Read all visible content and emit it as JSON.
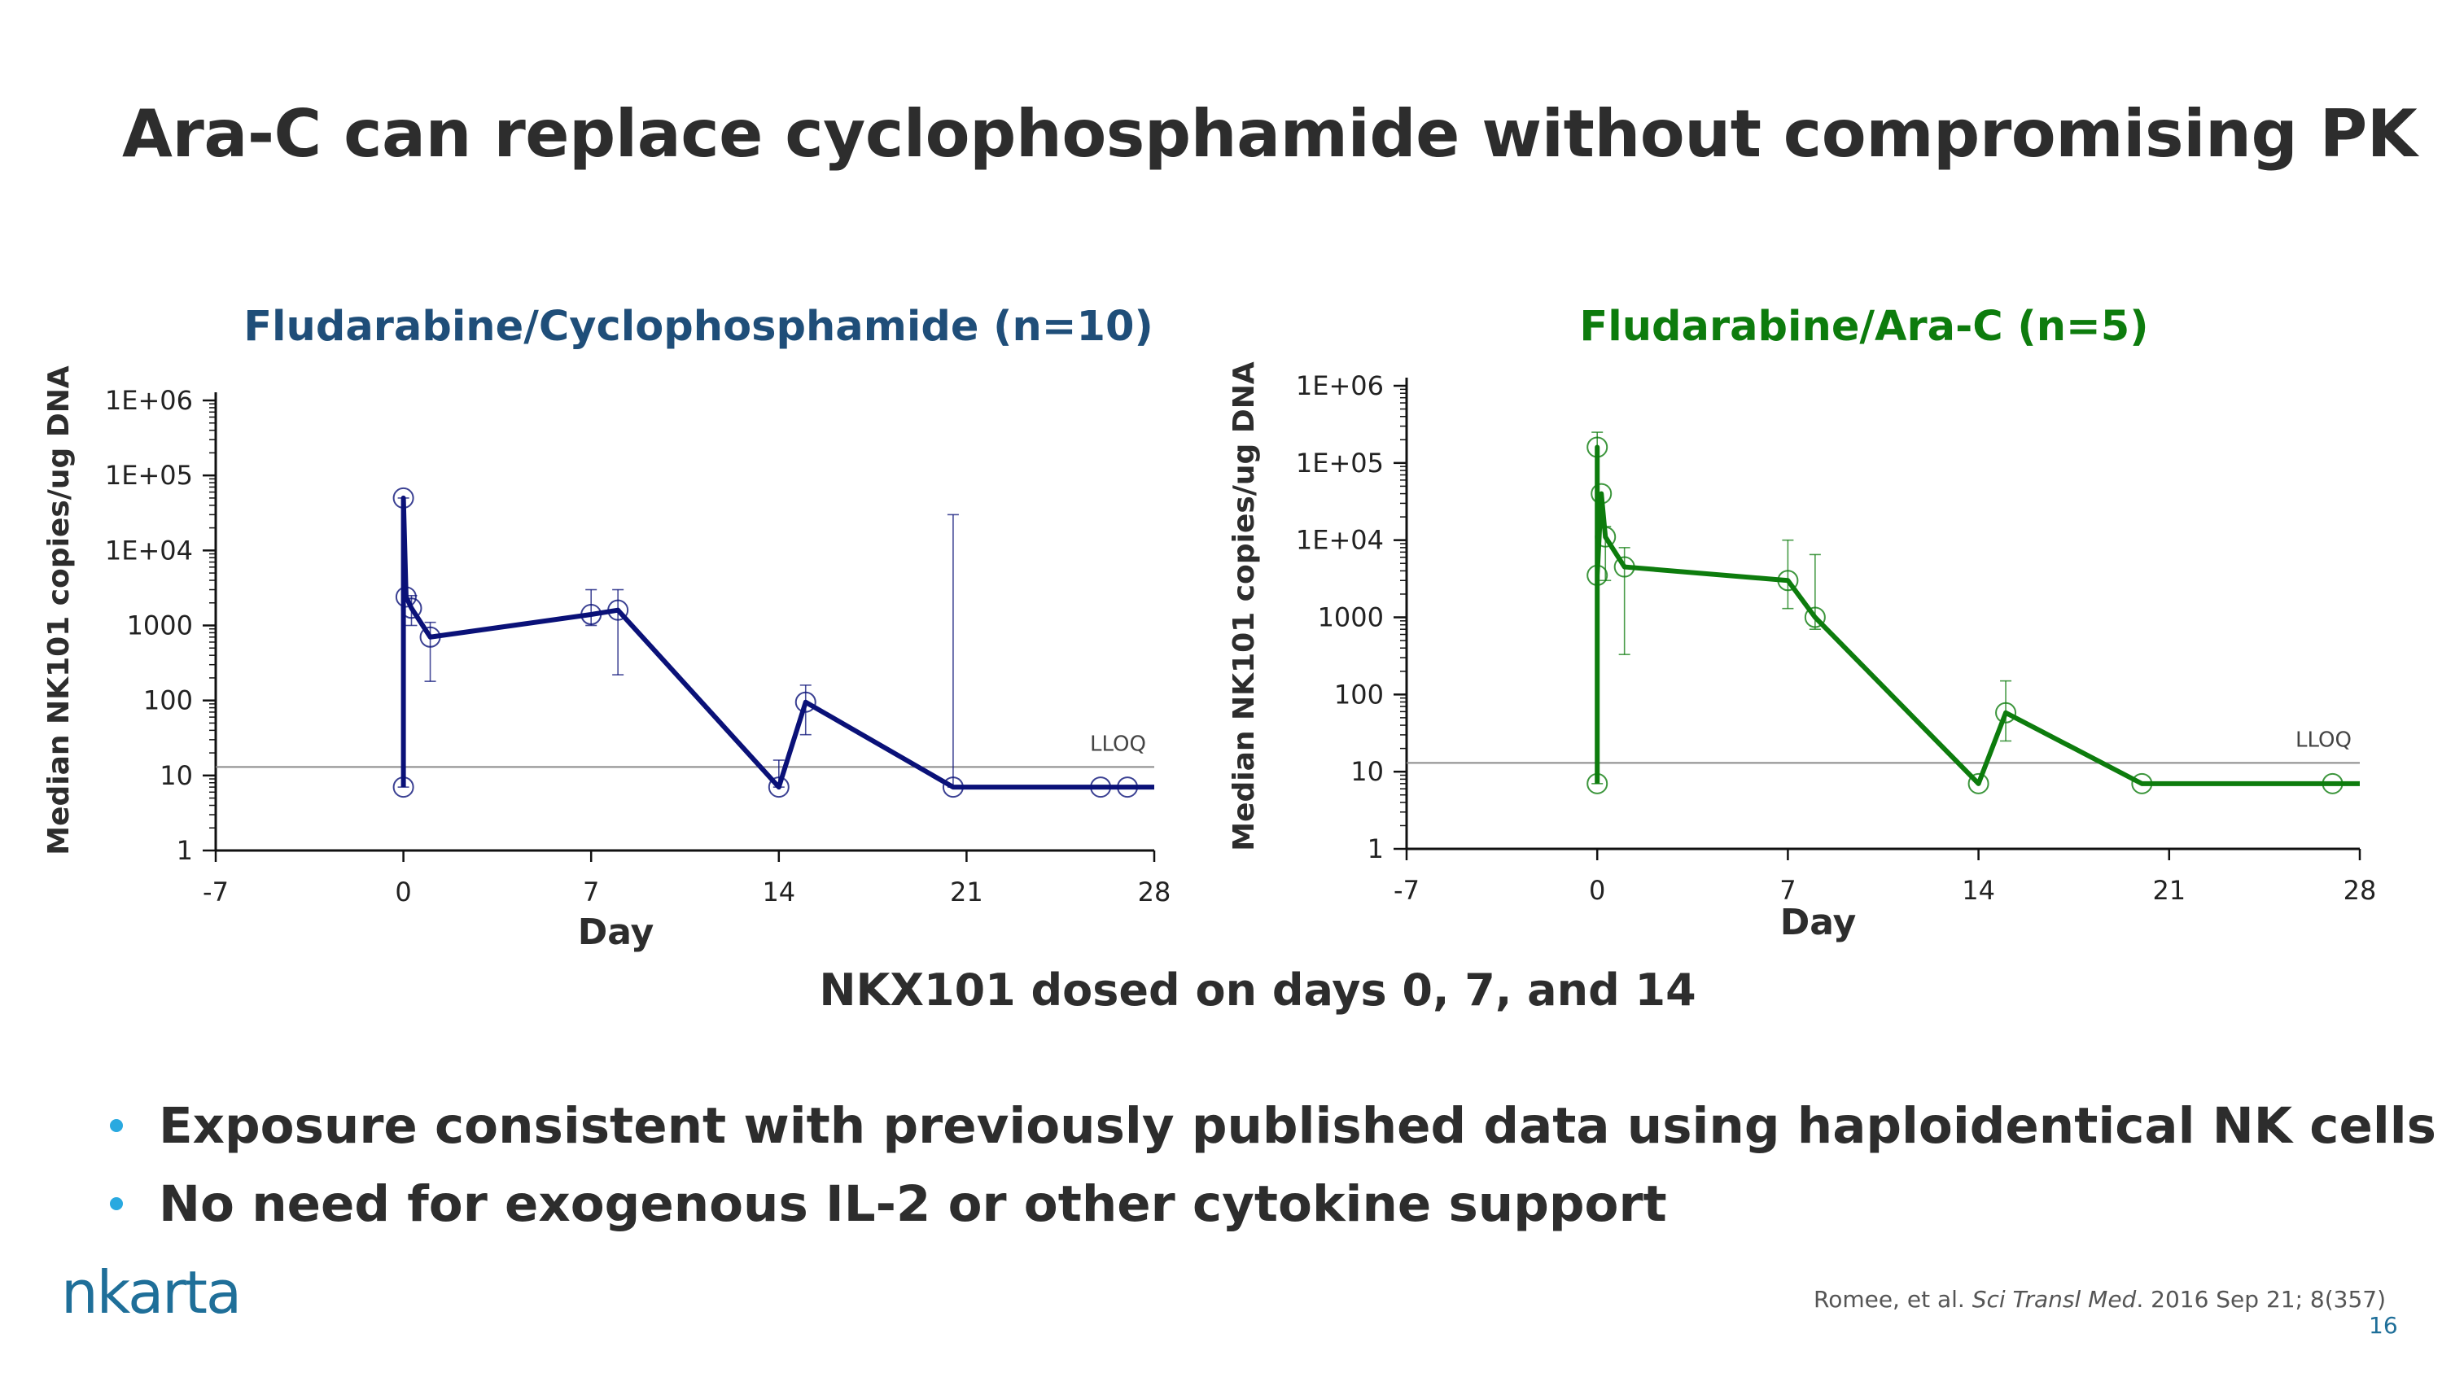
{
  "slide": {
    "title": "Ara-C can replace cyclophosphamide without compromising PK",
    "dosing_note": "NKX101 dosed on days 0, 7, and 14",
    "bullets": [
      "Exposure consistent with previously published data using haploidentical NK cells",
      "No need for exogenous IL-2 or other cytokine support"
    ],
    "logo_text": "nkarta",
    "citation": {
      "authors": "Romee, et al. ",
      "journal": "Sci Transl Med",
      "details": ". 2016 Sep 21; 8(357)"
    },
    "page_number": "16"
  },
  "colors": {
    "chart1": "#0a1178",
    "chart1_title": "#1f4e79",
    "chart2": "#0d7c0d",
    "chart2_title": "#0d7c0d",
    "bullet": "#29a9e0",
    "logo": "#1f6f99"
  },
  "chart_data": [
    {
      "type": "line",
      "title": "Fludarabine/Cyclophosphamide (n=10)",
      "xlabel": "Day",
      "ylabel": "Median NK101 copies/ug DNA",
      "xlim": [
        -7,
        28
      ],
      "xticks": [
        -7,
        0,
        7,
        14,
        21,
        28
      ],
      "ylim": [
        1,
        1000000
      ],
      "yscale": "log",
      "yticks": [
        1,
        10,
        100,
        1000,
        10000,
        100000,
        1000000
      ],
      "ytick_labels": [
        "1",
        "10",
        "100",
        "1000",
        "1E+04",
        "1E+05",
        "1E+06"
      ],
      "reference_line": {
        "label": "LLOQ",
        "y": 13
      },
      "series": [
        {
          "x": [
            0,
            0,
            0.1,
            0.3,
            1,
            7,
            8,
            14,
            15,
            20.5,
            26,
            27,
            28
          ],
          "y": [
            7,
            50000,
            2400,
            1700,
            700,
            1400,
            1600,
            7,
            95,
            7,
            7,
            7,
            7
          ],
          "markers": [
            true,
            true,
            true,
            true,
            true,
            true,
            true,
            true,
            true,
            true,
            true,
            true,
            false
          ],
          "error_bars": [
            {
              "x": 0,
              "low": 7,
              "high": 50000
            },
            {
              "x": 0.3,
              "low": 1000,
              "high": 2500
            },
            {
              "x": 1,
              "low": 180,
              "high": 1100
            },
            {
              "x": 7,
              "low": 1000,
              "high": 3000
            },
            {
              "x": 8,
              "low": 220,
              "high": 3000
            },
            {
              "x": 14,
              "low": 7,
              "high": 16
            },
            {
              "x": 15,
              "low": 35,
              "high": 160
            },
            {
              "x": 20.5,
              "low": 7,
              "high": 30000
            }
          ]
        }
      ]
    },
    {
      "type": "line",
      "title": "Fludarabine/Ara-C (n=5)",
      "xlabel": "Day",
      "ylabel": "Median NK101 copies/ug DNA",
      "xlim": [
        -7,
        28
      ],
      "xticks": [
        -7,
        0,
        7,
        14,
        21,
        28
      ],
      "ylim": [
        1,
        1000000
      ],
      "yscale": "log",
      "yticks": [
        1,
        10,
        100,
        1000,
        10000,
        100000,
        1000000
      ],
      "ytick_labels": [
        "1",
        "10",
        "100",
        "1000",
        "1E+04",
        "1E+05",
        "1E+06"
      ],
      "reference_line": {
        "label": "LLOQ",
        "y": 13
      },
      "series": [
        {
          "x": [
            0,
            0,
            0,
            0.15,
            0.3,
            1,
            7,
            8,
            14,
            15,
            20,
            27,
            28
          ],
          "y": [
            7,
            160000,
            3500,
            40000,
            11000,
            4500,
            3000,
            1000,
            7,
            58,
            7,
            7,
            7
          ],
          "markers": [
            true,
            true,
            true,
            true,
            true,
            true,
            true,
            true,
            true,
            true,
            true,
            true,
            false
          ],
          "error_bars": [
            {
              "x": 0,
              "low": 7,
              "high": 250000
            },
            {
              "x": 0.3,
              "low": 3000,
              "high": 15000
            },
            {
              "x": 1,
              "low": 330,
              "high": 8000
            },
            {
              "x": 7,
              "low": 1300,
              "high": 10000
            },
            {
              "x": 8,
              "low": 700,
              "high": 6500
            },
            {
              "x": 15,
              "low": 25,
              "high": 150
            }
          ]
        }
      ]
    }
  ]
}
